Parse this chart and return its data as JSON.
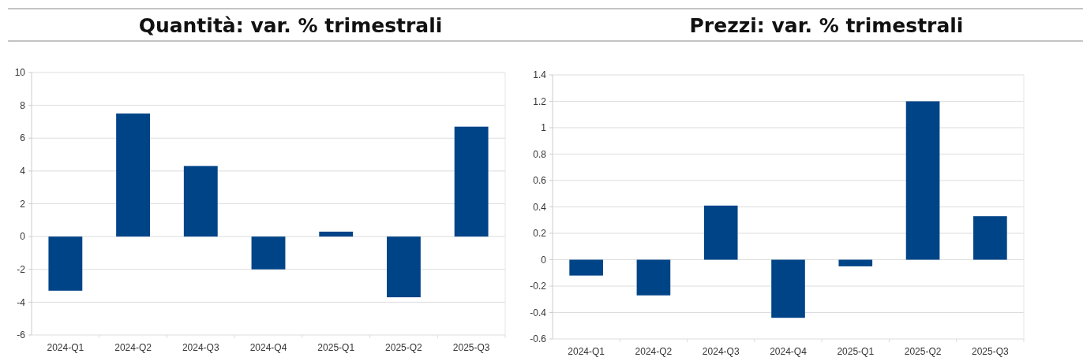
{
  "chart_data": [
    {
      "type": "bar",
      "title": "Quantità: var. % trimestrali",
      "categories": [
        "2024-Q1",
        "2024-Q2",
        "2024-Q3",
        "2024-Q4",
        "2025-Q1",
        "2025-Q2",
        "2025-Q3"
      ],
      "values": [
        -3.3,
        7.5,
        4.3,
        -2.0,
        0.3,
        -3.7,
        6.7
      ],
      "color": "#004488",
      "ylim": [
        -6,
        10
      ],
      "yticks": [
        -6,
        -4,
        -2,
        0,
        2,
        4,
        6,
        8,
        10
      ],
      "grid": "y"
    },
    {
      "type": "bar",
      "title": "Prezzi: var. % trimestrali",
      "categories": [
        "2024-Q1",
        "2024-Q2",
        "2024-Q3",
        "2024-Q4",
        "2025-Q1",
        "2025-Q2",
        "2025-Q3"
      ],
      "values": [
        -0.12,
        -0.27,
        0.41,
        -0.44,
        -0.05,
        1.2,
        0.33
      ],
      "color": "#004488",
      "ylim": [
        -0.6,
        1.4
      ],
      "yticks": [
        -0.6,
        -0.4,
        -0.2,
        0,
        0.2,
        0.4,
        0.6,
        0.8,
        1,
        1.2,
        1.4
      ],
      "grid": "y"
    }
  ]
}
